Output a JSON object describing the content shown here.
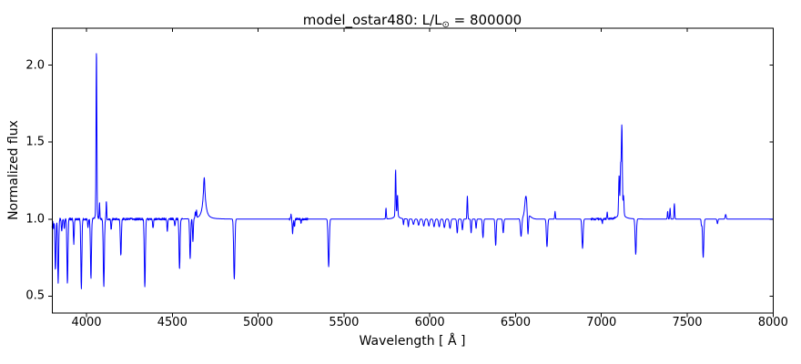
{
  "figure": {
    "title_parts": {
      "prefix": "model_ostar480: L/L",
      "sub": "⊙",
      "suffix": " = 800000"
    }
  },
  "chart_data": {
    "type": "line",
    "title": "model_ostar480: L/L⊙ = 800000",
    "xlabel": "Wavelength [ Å ]",
    "ylabel": "Normalized flux",
    "xlim": [
      3800,
      8000
    ],
    "ylim": [
      0.39,
      2.24
    ],
    "x_tick_values": [
      4000,
      4500,
      5000,
      5500,
      6000,
      6500,
      7000,
      7500,
      8000
    ],
    "x_tick_labels": [
      "4000",
      "4500",
      "5000",
      "5500",
      "6000",
      "6500",
      "7000",
      "7500",
      "8000"
    ],
    "y_tick_values": [
      0.5,
      1.0,
      1.5,
      2.0
    ],
    "y_tick_labels": [
      "0.5",
      "1.0",
      "1.5",
      "2.0"
    ],
    "grid": false,
    "legend": "none",
    "line_color": "#0000ff",
    "frame_color": "#000000",
    "background": "#ffffff",
    "continuum": 1.0,
    "sample_step_angstrom": 1.25,
    "noise": {
      "amplitude": 0.007,
      "regions": [
        [
          3800,
          4560
        ],
        [
          5180,
          5290
        ],
        [
          6940,
          7080
        ]
      ]
    },
    "features": [
      [
        3798,
        -0.08,
        2.5,
        "g"
      ],
      [
        3808,
        -0.07,
        2.2,
        "g"
      ],
      [
        3819,
        -0.33,
        3.0,
        "g"
      ],
      [
        3835,
        -0.41,
        3.0,
        "g"
      ],
      [
        3856,
        -0.08,
        2.5,
        "g"
      ],
      [
        3871,
        -0.06,
        2.3,
        "g"
      ],
      [
        3889,
        -0.42,
        3.0,
        "g"
      ],
      [
        3926,
        -0.16,
        2.5,
        "g"
      ],
      [
        3970,
        -0.45,
        3.0,
        "g"
      ],
      [
        4009,
        -0.05,
        2.3,
        "g"
      ],
      [
        4026,
        -0.38,
        3.0,
        "g"
      ],
      [
        4058,
        1.07,
        2.3,
        "g"
      ],
      [
        4058,
        0.03,
        7.0,
        "g"
      ],
      [
        4076,
        0.1,
        1.8,
        "g"
      ],
      [
        4101,
        -0.44,
        3.2,
        "g"
      ],
      [
        4116,
        0.12,
        1.8,
        "g"
      ],
      [
        4144,
        -0.07,
        2.5,
        "g"
      ],
      [
        4200,
        -0.24,
        3.0,
        "g"
      ],
      [
        4340,
        -0.44,
        3.2,
        "g"
      ],
      [
        4388,
        -0.06,
        2.5,
        "g"
      ],
      [
        4471,
        -0.08,
        2.5,
        "g"
      ],
      [
        4515,
        -0.05,
        2.3,
        "g"
      ],
      [
        4542,
        -0.32,
        3.0,
        "g"
      ],
      [
        4604,
        -0.26,
        3.0,
        "g"
      ],
      [
        4620,
        -0.15,
        2.5,
        "g"
      ],
      [
        4634,
        0.04,
        1.8,
        "g"
      ],
      [
        4641,
        0.05,
        1.8,
        "g"
      ],
      [
        4686,
        0.2,
        10.0,
        "l"
      ],
      [
        4686,
        0.07,
        2.5,
        "g"
      ],
      [
        4861,
        -0.39,
        3.5,
        "g"
      ],
      [
        5192,
        0.03,
        1.8,
        "g"
      ],
      [
        5201,
        -0.09,
        2.5,
        "g"
      ],
      [
        5212,
        -0.05,
        2.2,
        "g"
      ],
      [
        5250,
        -0.03,
        2.0,
        "g"
      ],
      [
        5411,
        -0.31,
        3.5,
        "g"
      ],
      [
        5745,
        0.07,
        2.0,
        "g"
      ],
      [
        5806,
        0.035,
        12.0,
        "l"
      ],
      [
        5801,
        0.29,
        2.2,
        "g"
      ],
      [
        5812,
        0.13,
        2.2,
        "g"
      ],
      [
        5847,
        -0.04,
        2.0,
        "g"
      ],
      [
        5875,
        -0.05,
        2.5,
        "g"
      ],
      [
        5905,
        -0.035,
        4.0,
        "g"
      ],
      [
        5935,
        -0.04,
        4.0,
        "g"
      ],
      [
        5965,
        -0.045,
        4.0,
        "g"
      ],
      [
        5995,
        -0.045,
        4.0,
        "g"
      ],
      [
        6025,
        -0.05,
        4.0,
        "g"
      ],
      [
        6055,
        -0.05,
        4.0,
        "g"
      ],
      [
        6085,
        -0.055,
        4.0,
        "g"
      ],
      [
        6118,
        -0.06,
        4.0,
        "g"
      ],
      [
        6160,
        -0.09,
        3.0,
        "g"
      ],
      [
        6190,
        -0.07,
        3.0,
        "g"
      ],
      [
        6219,
        0.15,
        2.2,
        "g"
      ],
      [
        6241,
        -0.09,
        2.5,
        "g"
      ],
      [
        6270,
        -0.06,
        2.5,
        "g"
      ],
      [
        6310,
        -0.12,
        3.0,
        "g"
      ],
      [
        6384,
        -0.17,
        3.0,
        "g"
      ],
      [
        6428,
        -0.09,
        3.0,
        "g"
      ],
      [
        6532,
        -0.12,
        4.0,
        "g"
      ],
      [
        6560,
        0.12,
        6.0,
        "g"
      ],
      [
        6565,
        0.03,
        20.0,
        "g"
      ],
      [
        6572,
        -0.14,
        3.0,
        "g"
      ],
      [
        6683,
        -0.18,
        3.5,
        "g"
      ],
      [
        6730,
        0.05,
        2.0,
        "g"
      ],
      [
        6890,
        -0.19,
        3.5,
        "g"
      ],
      [
        7005,
        -0.03,
        2.0,
        "g"
      ],
      [
        7034,
        0.04,
        2.0,
        "g"
      ],
      [
        7115,
        0.06,
        15.0,
        "l"
      ],
      [
        7103,
        0.25,
        2.5,
        "g"
      ],
      [
        7112,
        0.28,
        2.5,
        "g"
      ],
      [
        7119,
        0.55,
        2.8,
        "g"
      ],
      [
        7129,
        0.12,
        2.5,
        "g"
      ],
      [
        7200,
        -0.23,
        3.5,
        "g"
      ],
      [
        7386,
        0.05,
        2.0,
        "g"
      ],
      [
        7400,
        0.07,
        2.0,
        "g"
      ],
      [
        7425,
        0.1,
        2.2,
        "g"
      ],
      [
        7583,
        -0.04,
        2.0,
        "g"
      ],
      [
        7593,
        -0.25,
        3.5,
        "g"
      ],
      [
        7676,
        -0.03,
        2.5,
        "g"
      ],
      [
        7724,
        0.03,
        3.0,
        "g"
      ]
    ]
  }
}
